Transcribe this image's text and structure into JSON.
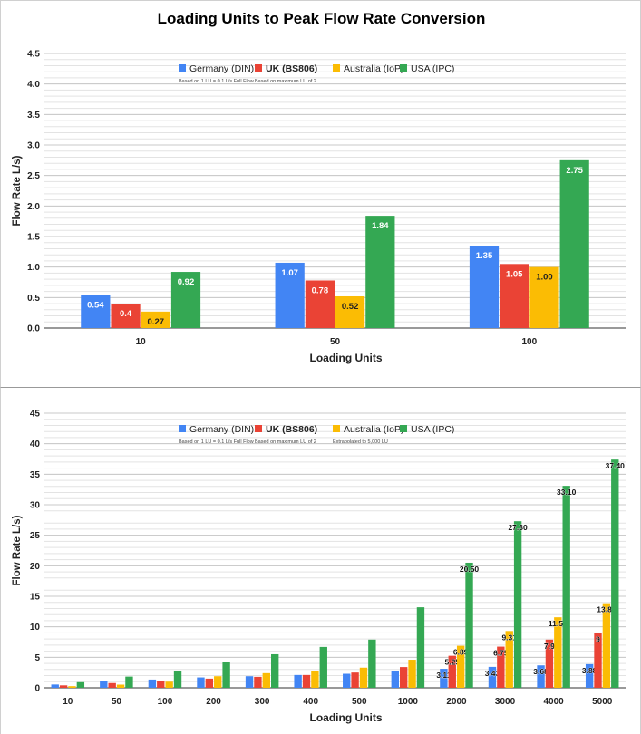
{
  "title": "Loading Units to Peak Flow Rate Conversion",
  "colors": {
    "Germany": "#4285F4",
    "UK": "#EA4335",
    "Australia": "#FBBC04",
    "USA": "#34A853"
  },
  "chart_data": [
    {
      "type": "bar",
      "title": "Loading Units to Peak Flow Rate Conversion",
      "xlabel": "Loading Units",
      "ylabel": "Flow Rate L/s)",
      "ylim": [
        0,
        4.5
      ],
      "yticks": [
        "0.0",
        "0.5",
        "1.0",
        "1.5",
        "2.0",
        "2.5",
        "3.0",
        "3.5",
        "4.0",
        "4.5"
      ],
      "grid": true,
      "legend_position": "top",
      "categories": [
        "10",
        "50",
        "100"
      ],
      "series": [
        {
          "name": "Germany (DIN)",
          "note": "Based on 1 LU = 0.1 L/s Full Flow",
          "color": "#4285F4",
          "values": [
            0.54,
            1.07,
            1.35
          ],
          "labels": [
            "0.54",
            "1.07",
            "1.35"
          ]
        },
        {
          "name": "UK (BS806)",
          "note": "Based on maximum LU of 2",
          "color": "#EA4335",
          "values": [
            0.4,
            0.78,
            1.05
          ],
          "labels": [
            "0.4",
            "0.78",
            "1.05"
          ]
        },
        {
          "name": "Australia (IoP)",
          "note": "",
          "color": "#FBBC04",
          "values": [
            0.27,
            0.52,
            1.0
          ],
          "labels": [
            "0.27",
            "0.52",
            "1.00"
          ]
        },
        {
          "name": "USA (IPC)",
          "note": "",
          "color": "#34A853",
          "values": [
            0.92,
            1.84,
            2.75
          ],
          "labels": [
            "0.92",
            "1.84",
            "2.75"
          ]
        }
      ]
    },
    {
      "type": "bar",
      "title": "",
      "xlabel": "Loading Units",
      "ylabel": "Flow Rate L/s)",
      "ylim": [
        0,
        45
      ],
      "yticks": [
        "0",
        "5",
        "10",
        "15",
        "20",
        "25",
        "30",
        "35",
        "40",
        "45"
      ],
      "grid": true,
      "legend_position": "top",
      "categories": [
        "10",
        "50",
        "100",
        "200",
        "300",
        "400",
        "500",
        "1000",
        "2000",
        "3000",
        "4000",
        "5000"
      ],
      "series": [
        {
          "name": "Germany (DIN)",
          "note": "Based on 1 LU = 0.1 L/s Full Flow",
          "color": "#4285F4",
          "values": [
            0.54,
            1.07,
            1.35,
            1.7,
            1.9,
            2.1,
            2.3,
            2.7,
            3.11,
            3.43,
            3.68,
            3.88
          ],
          "labels": [
            "",
            "",
            "",
            "",
            "",
            "",
            "",
            "",
            "3.11",
            "3.43",
            "3.68",
            "3.88"
          ]
        },
        {
          "name": "UK (BS806)",
          "note": "Based on maximum LU of 2",
          "color": "#EA4335",
          "values": [
            0.4,
            0.78,
            1.05,
            1.5,
            1.8,
            2.1,
            2.5,
            3.4,
            5.25,
            6.75,
            7.9,
            9.0
          ],
          "labels": [
            "",
            "",
            "",
            "",
            "",
            "",
            "",
            "",
            "5.25",
            "6.75",
            "7.9",
            "9"
          ]
        },
        {
          "name": "Australia (IoP)",
          "note": "Extrapolated to 5,000 LU",
          "color": "#FBBC04",
          "values": [
            0.27,
            0.52,
            1.0,
            1.9,
            2.4,
            2.8,
            3.3,
            4.6,
            6.89,
            9.31,
            11.56,
            13.86
          ],
          "labels": [
            "",
            "",
            "",
            "",
            "",
            "",
            "",
            "",
            "6.89",
            "9.31",
            "11.56",
            "13.86"
          ]
        },
        {
          "name": "USA (IPC)",
          "note": "",
          "color": "#34A853",
          "values": [
            0.92,
            1.84,
            2.75,
            4.2,
            5.5,
            6.7,
            7.9,
            13.2,
            20.5,
            27.3,
            33.1,
            37.4
          ],
          "labels": [
            "",
            "",
            "",
            "",
            "",
            "",
            "",
            "",
            "20.50",
            "27.30",
            "33.10",
            "37.40"
          ]
        }
      ]
    }
  ]
}
